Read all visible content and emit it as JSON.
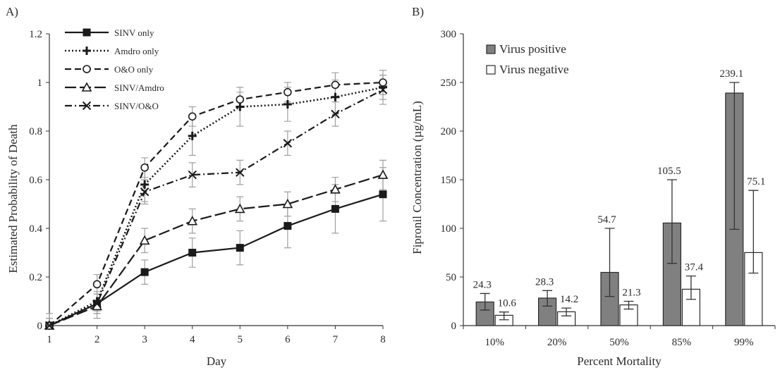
{
  "panel_a": {
    "label": "A)",
    "ylabel": "Estimated Probability of Death",
    "xlabel": "Day",
    "y_ticks": [
      "0",
      "0.2",
      "0.4",
      "0.6",
      "0.8",
      "1",
      "1.2"
    ],
    "x_ticks": [
      "1",
      "2",
      "3",
      "4",
      "5",
      "6",
      "7",
      "8"
    ]
  },
  "panel_b": {
    "label": "B)",
    "ylabel": "Fipronil Concentration (µg/mL)",
    "xlabel": "Percent Mortality",
    "y_ticks": [
      "0",
      "50",
      "100",
      "150",
      "200",
      "250",
      "300"
    ],
    "x_ticks": [
      "10%",
      "20%",
      "50%",
      "85%",
      "99%"
    ]
  },
  "colors": {
    "line": "#1a1a1a",
    "bar_positive": "#808080",
    "bar_negative": "#ffffff",
    "error": "#a0a0a0",
    "axis": "#333333"
  },
  "chart_data": [
    {
      "type": "line",
      "xlabel": "Day",
      "ylabel": "Estimated Probability of Death",
      "xlim": [
        1,
        8
      ],
      "ylim": [
        0,
        1.2
      ],
      "grid": false,
      "legend_position": "top-left",
      "x": [
        1,
        2,
        3,
        4,
        5,
        6,
        7,
        8
      ],
      "series": [
        {
          "name": "SINV only",
          "marker": "filled-square",
          "dash": "solid",
          "values": [
            0,
            0.09,
            0.22,
            0.3,
            0.32,
            0.41,
            0.48,
            0.54
          ],
          "error": [
            0.03,
            0.04,
            0.05,
            0.06,
            0.07,
            0.09,
            0.1,
            0.11
          ]
        },
        {
          "name": "Amdro only",
          "marker": "plus",
          "dash": "dotted",
          "values": [
            0,
            0.1,
            0.58,
            0.78,
            0.9,
            0.91,
            0.94,
            0.98
          ],
          "error": [
            0.03,
            0.04,
            0.07,
            0.08,
            0.08,
            0.07,
            0.07,
            0.05
          ]
        },
        {
          "name": "O&O only",
          "marker": "open-circle",
          "dash": "dashed",
          "values": [
            0,
            0.17,
            0.65,
            0.86,
            0.93,
            0.96,
            0.99,
            1.0
          ],
          "error": [
            0.05,
            0.04,
            0.04,
            0.04,
            0.03,
            0.04,
            0.05,
            0.05
          ]
        },
        {
          "name": "SINV/Amdro",
          "marker": "open-triangle",
          "dash": "long-dash",
          "values": [
            0,
            0.08,
            0.35,
            0.43,
            0.48,
            0.5,
            0.56,
            0.62
          ],
          "error": [
            0.03,
            0.05,
            0.05,
            0.05,
            0.05,
            0.05,
            0.05,
            0.06
          ]
        },
        {
          "name": "SINV/O&O",
          "marker": "x",
          "dash": "dash-dot",
          "values": [
            0,
            0.09,
            0.55,
            0.62,
            0.63,
            0.75,
            0.87,
            0.97
          ],
          "error": [
            0.03,
            0.04,
            0.05,
            0.05,
            0.05,
            0.05,
            0.05,
            0.06
          ]
        }
      ]
    },
    {
      "type": "bar",
      "xlabel": "Percent Mortality",
      "ylabel": "Fipronil Concentration (µg/mL)",
      "ylim": [
        0,
        300
      ],
      "grid": false,
      "legend_position": "top-left",
      "categories": [
        "10%",
        "20%",
        "50%",
        "85%",
        "99%"
      ],
      "series": [
        {
          "name": "Virus positive",
          "values": [
            24.3,
            28.3,
            54.7,
            105.5,
            239.1
          ],
          "labels": [
            "24.3",
            "28.3",
            "54.7",
            "105.5",
            "239.1"
          ],
          "error_low": [
            16,
            20,
            30,
            64,
            99
          ],
          "error_high": [
            33,
            36,
            100,
            150,
            250
          ]
        },
        {
          "name": "Virus negative",
          "values": [
            10.6,
            14.2,
            21.3,
            37.4,
            75.1
          ],
          "labels": [
            "10.6",
            "14.2",
            "21.3",
            "37.4",
            "75.1"
          ],
          "error_low": [
            6,
            10,
            17,
            27,
            54
          ],
          "error_high": [
            14,
            18,
            25,
            51,
            139
          ]
        }
      ]
    }
  ]
}
